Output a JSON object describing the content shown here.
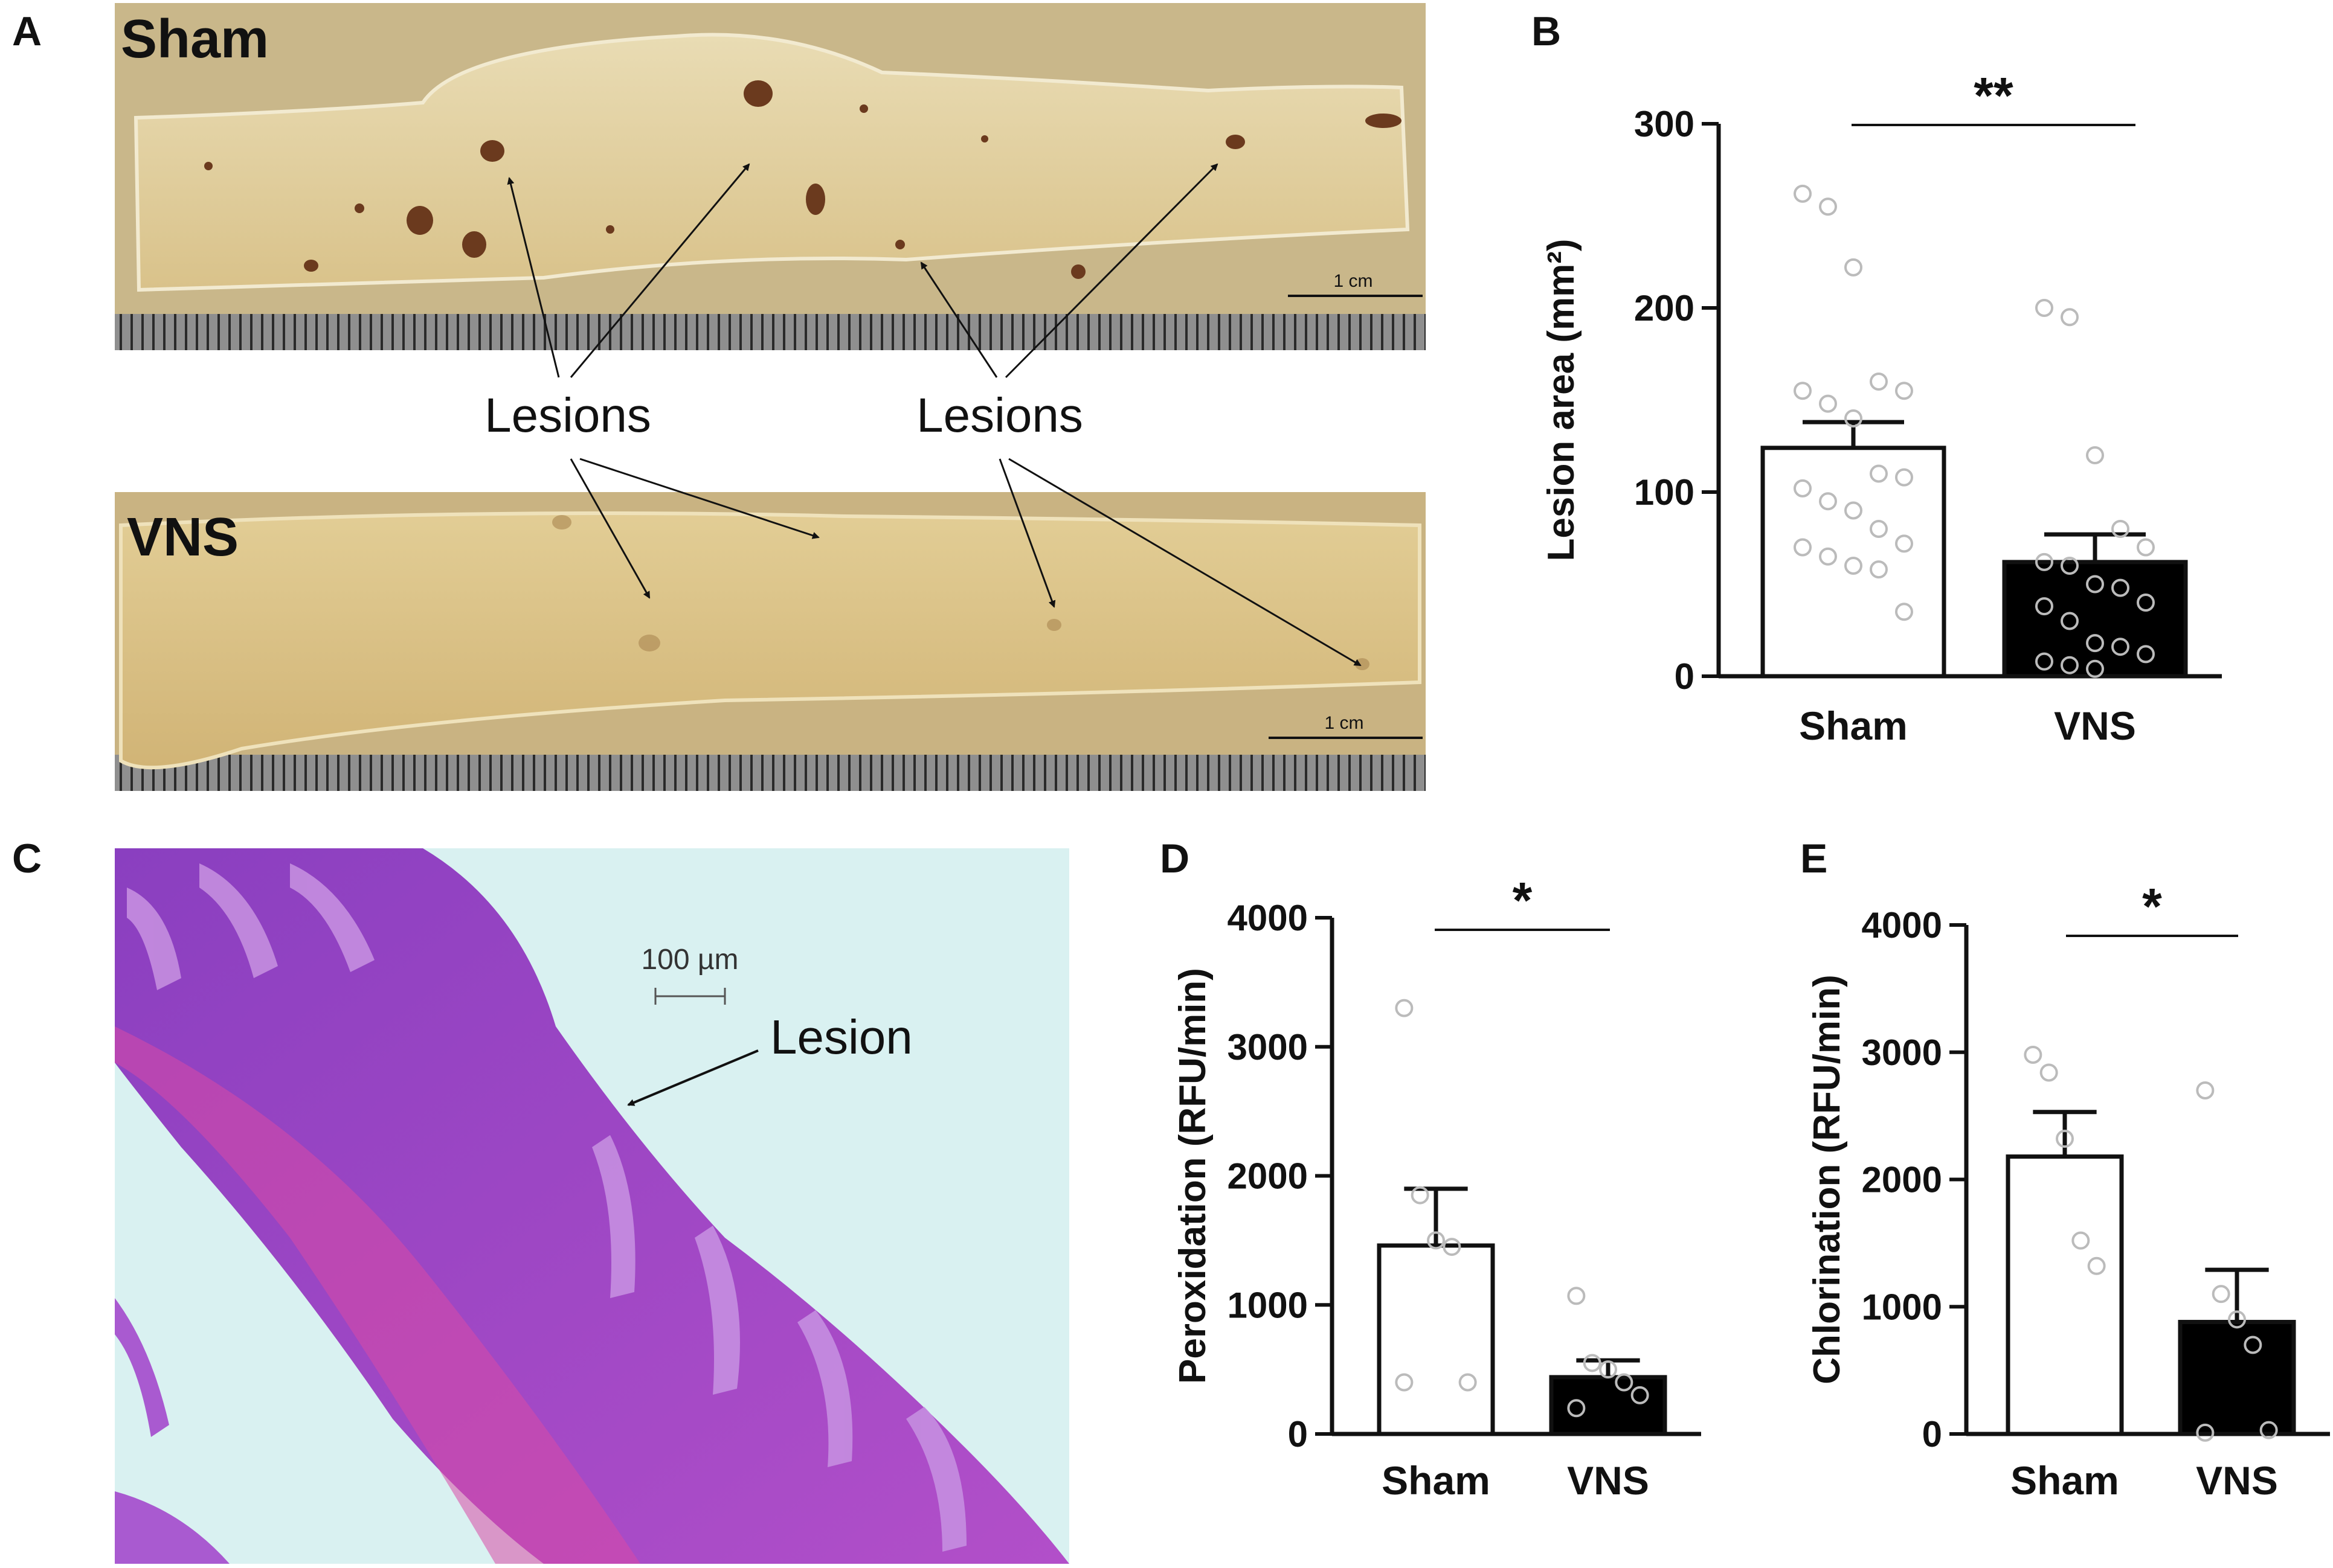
{
  "panels": {
    "A": {
      "letter": "A",
      "top_label": "Sham",
      "bottom_label": "VNS",
      "annotation_left": "Lesions",
      "annotation_right": "Lesions",
      "scale_top": "1 cm",
      "scale_bottom": "1 cm"
    },
    "B": {
      "letter": "B"
    },
    "C": {
      "letter": "C",
      "scale": "100 µm",
      "annotation": "Lesion"
    },
    "D": {
      "letter": "D"
    },
    "E": {
      "letter": "E"
    }
  },
  "colors": {
    "sham_bar": "#ffffff",
    "vns_bar": "#000000",
    "points": "#bbbbbb"
  },
  "chart_data": [
    {
      "id": "B",
      "type": "bar",
      "categories": [
        "Sham",
        "VNS"
      ],
      "values": [
        124,
        62
      ],
      "errors": [
        14,
        15
      ],
      "ylabel": "Lesion area (mm²)",
      "ylim": [
        0,
        300
      ],
      "yticks": [
        0,
        100,
        200,
        300
      ],
      "significance": "**",
      "points": [
        [
          262,
          255,
          222,
          160,
          155,
          155,
          148,
          140,
          110,
          108,
          102,
          95,
          90,
          80,
          72,
          70,
          65,
          60,
          58,
          35
        ],
        [
          200,
          195,
          120,
          80,
          70,
          62,
          60,
          50,
          48,
          40,
          38,
          30,
          18,
          16,
          12,
          8,
          6,
          4
        ]
      ]
    },
    {
      "id": "D",
      "type": "bar",
      "categories": [
        "Sham",
        "VNS"
      ],
      "values": [
        1460,
        440
      ],
      "errors": [
        440,
        130
      ],
      "ylabel": "Peroxidation (RFU/min)",
      "ylim": [
        0,
        4000
      ],
      "yticks": [
        0,
        1000,
        2000,
        3000,
        4000
      ],
      "significance": "*",
      "points": [
        [
          3300,
          1850,
          1500,
          1450,
          400,
          400
        ],
        [
          1070,
          550,
          500,
          400,
          300,
          200
        ]
      ]
    },
    {
      "id": "E",
      "type": "bar",
      "categories": [
        "Sham",
        "VNS"
      ],
      "values": [
        2180,
        880
      ],
      "errors": [
        350,
        410
      ],
      "ylabel": "Chlorination (RFU/min)",
      "ylim": [
        0,
        4000
      ],
      "yticks": [
        0,
        1000,
        2000,
        3000,
        4000
      ],
      "significance": "*",
      "points": [
        [
          2980,
          2840,
          2320,
          1520,
          1320
        ],
        [
          2700,
          1100,
          900,
          700,
          30,
          10
        ]
      ]
    }
  ]
}
